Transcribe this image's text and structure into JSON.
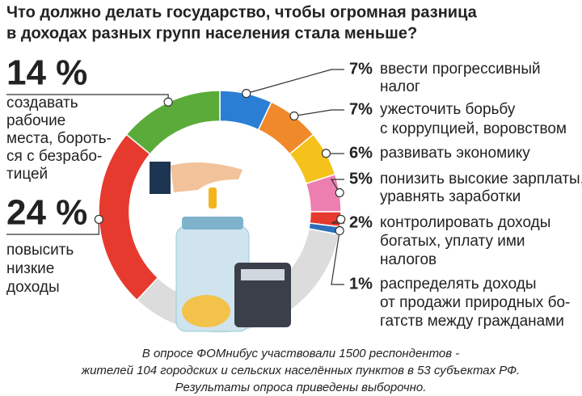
{
  "chart_data": {
    "type": "donut",
    "title": [
      "Что должно делать государство, чтобы огромная разница",
      "в доходах разных групп населения стала меньше?"
    ],
    "categories": [
      [
        "ввести прогрессивный",
        "налог"
      ],
      [
        "ужесточить борьбу",
        "с коррупцией, воровством"
      ],
      [
        "развивать экономику"
      ],
      [
        "понизить высокие зарплаты,",
        "уравнять заработки"
      ],
      [
        "контролировать доходы",
        "богатых, уплату ими",
        "налогов"
      ],
      [
        "распределять доходы",
        "от продажи природных бо-",
        "гатств между гражданами"
      ],
      null,
      [
        "повысить",
        "низкие",
        "доходы"
      ],
      [
        "создавать",
        "рабочие",
        "места, бороть-",
        "ся с безрабо-",
        "тицей"
      ]
    ],
    "values": [
      7,
      7,
      6,
      5,
      2,
      1,
      34,
      24,
      14
    ],
    "value_labels": [
      "7%",
      "7%",
      "6%",
      "5%",
      "2%",
      "1%",
      null,
      "24 %",
      "14 %"
    ],
    "colors": [
      "#2a7fd4",
      "#f0892a",
      "#f5c21b",
      "#ec7fb0",
      "#e63a2e",
      "#2d6fb8",
      "#dcdcdc",
      "#e63a2e",
      "#5bab3a"
    ],
    "footnote": [
      "В опросе ФОМнибус участвовали 1500 респондентов -",
      "жителей 104 городских и сельских населённых пунктов в 53 субъектах РФ.",
      "Результаты опроса приведены выборочно."
    ]
  }
}
